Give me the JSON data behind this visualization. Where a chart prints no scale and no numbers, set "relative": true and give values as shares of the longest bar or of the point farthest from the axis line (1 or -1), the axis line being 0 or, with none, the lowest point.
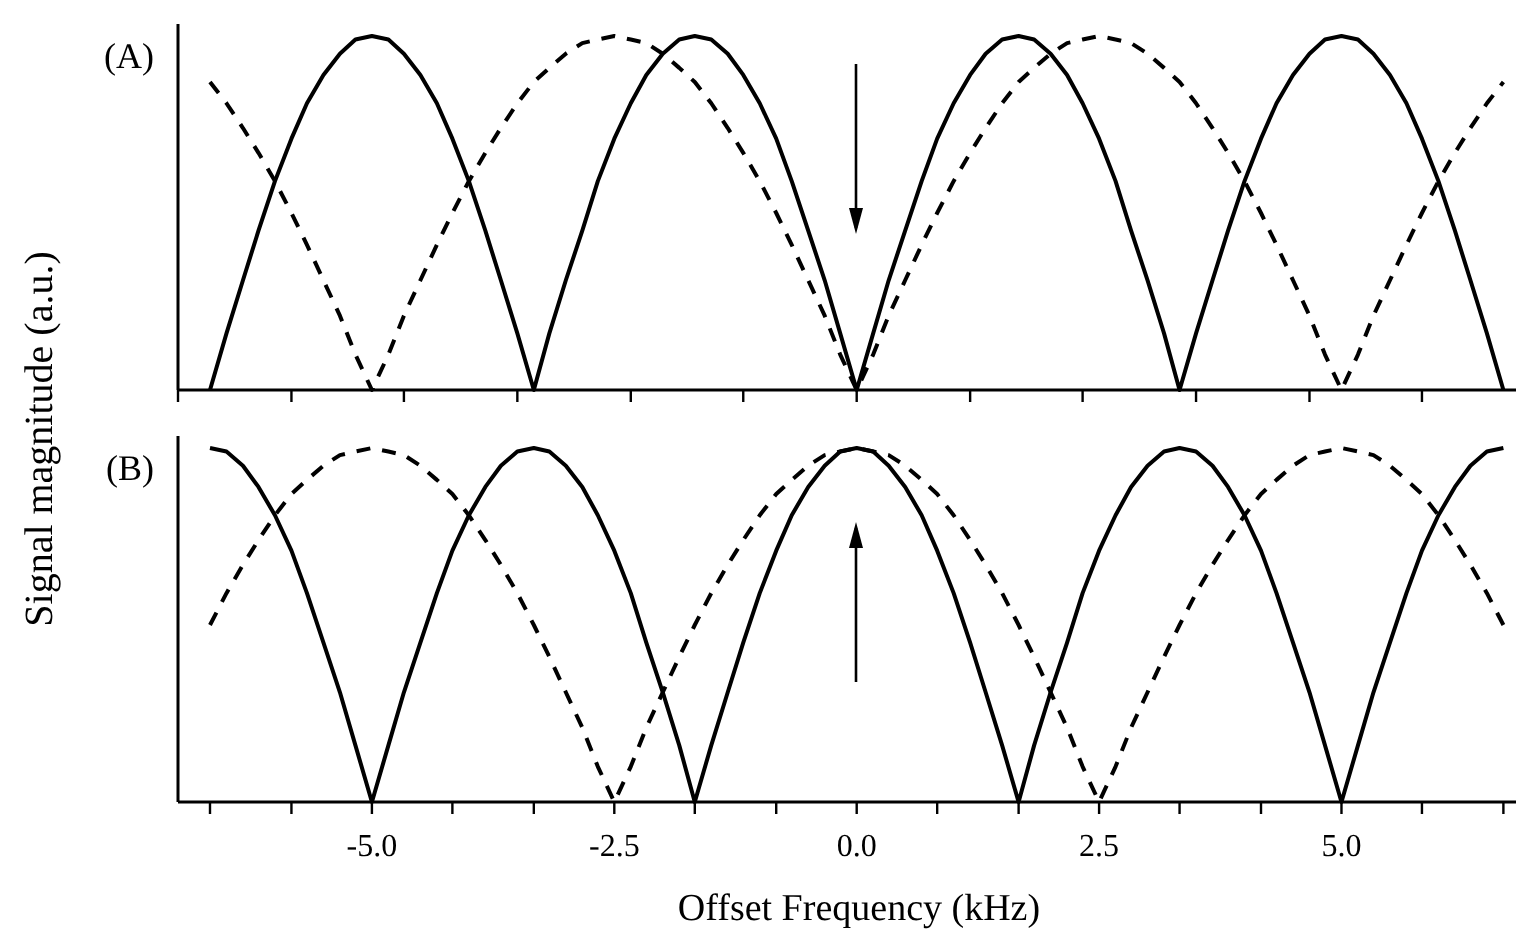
{
  "chart_data": [
    {
      "type": "line",
      "title": "(A)",
      "ylabel": "Signal magnitude (a.u.)",
      "relative": true,
      "tick_labels": false,
      "xlim": [
        -7,
        6.8
      ],
      "xticks": [
        -7,
        -5.83,
        -4.67,
        -3.5,
        -2.33,
        -1.17,
        0,
        1.17,
        2.33,
        3.5,
        4.67,
        5.83
      ],
      "x": [
        -6.67,
        -6.5,
        -6.33,
        -6.17,
        -6,
        -5.83,
        -5.67,
        -5.5,
        -5.33,
        -5.17,
        -5,
        -4.83,
        -4.67,
        -4.5,
        -4.33,
        -4.17,
        -4,
        -3.83,
        -3.67,
        -3.5,
        -3.33,
        -3.17,
        -3,
        -2.83,
        -2.67,
        -2.5,
        -2.33,
        -2.17,
        -2,
        -1.83,
        -1.67,
        -1.5,
        -1.33,
        -1.17,
        -1,
        -0.83,
        -0.67,
        -0.5,
        -0.33,
        -0.17,
        0,
        0.17,
        0.33,
        0.5,
        0.67,
        0.83,
        1,
        1.17,
        1.33,
        1.5,
        1.67,
        1.83,
        2,
        2.17,
        2.33,
        2.5,
        2.67,
        2.83,
        3,
        3.17,
        3.33,
        3.5,
        3.67,
        3.83,
        4,
        4.17,
        4.33,
        4.5,
        4.67,
        4.83,
        5,
        5.17,
        5.33,
        5.5,
        5.67,
        5.83,
        6,
        6.17,
        6.33,
        6.5,
        6.67
      ],
      "series": [
        {
          "color": "#000000",
          "line_style": "solid",
          "values": [
            0,
            0.16,
            0.31,
            0.45,
            0.59,
            0.71,
            0.81,
            0.89,
            0.95,
            0.99,
            1,
            0.99,
            0.95,
            0.89,
            0.81,
            0.71,
            0.59,
            0.45,
            0.31,
            0.16,
            0,
            0.16,
            0.31,
            0.45,
            0.59,
            0.71,
            0.81,
            0.89,
            0.95,
            0.99,
            1,
            0.99,
            0.95,
            0.89,
            0.81,
            0.71,
            0.59,
            0.45,
            0.31,
            0.16,
            0,
            0.16,
            0.31,
            0.45,
            0.59,
            0.71,
            0.81,
            0.89,
            0.95,
            0.99,
            1,
            0.99,
            0.95,
            0.89,
            0.81,
            0.71,
            0.59,
            0.45,
            0.31,
            0.16,
            0,
            0.16,
            0.31,
            0.45,
            0.59,
            0.71,
            0.81,
            0.89,
            0.95,
            0.99,
            1,
            0.99,
            0.95,
            0.89,
            0.81,
            0.71,
            0.59,
            0.45,
            0.31,
            0.16,
            0
          ]
        },
        {
          "color": "#000000",
          "line_style": "dashed",
          "values": [
            0.87,
            0.81,
            0.74,
            0.67,
            0.59,
            0.5,
            0.41,
            0.31,
            0.21,
            0.1,
            0,
            0.1,
            0.21,
            0.31,
            0.41,
            0.5,
            0.59,
            0.67,
            0.74,
            0.81,
            0.87,
            0.91,
            0.95,
            0.98,
            0.99,
            1,
            0.99,
            0.98,
            0.95,
            0.91,
            0.87,
            0.81,
            0.74,
            0.67,
            0.59,
            0.5,
            0.41,
            0.31,
            0.21,
            0.1,
            0,
            0.1,
            0.21,
            0.31,
            0.41,
            0.5,
            0.59,
            0.67,
            0.74,
            0.81,
            0.87,
            0.91,
            0.95,
            0.98,
            0.99,
            1,
            0.99,
            0.98,
            0.95,
            0.91,
            0.87,
            0.81,
            0.74,
            0.67,
            0.59,
            0.5,
            0.41,
            0.31,
            0.21,
            0.1,
            0,
            0.1,
            0.21,
            0.31,
            0.41,
            0.5,
            0.59,
            0.67,
            0.74,
            0.81,
            0.87
          ]
        }
      ]
    },
    {
      "type": "line",
      "title": "(B)",
      "xlabel": "Offset Frequency (kHz)",
      "relative": true,
      "tick_labels": "x",
      "xlim": [
        -7,
        6.8
      ],
      "xticks": [
        {
          "value": -6.67,
          "label": null
        },
        {
          "value": -5.83,
          "label": null
        },
        {
          "value": -5,
          "label": "-5.0"
        },
        {
          "value": -4.17,
          "label": null
        },
        {
          "value": -3.33,
          "label": null
        },
        {
          "value": -2.5,
          "label": "-2.5"
        },
        {
          "value": -1.67,
          "label": null
        },
        {
          "value": -0.83,
          "label": null
        },
        {
          "value": 0,
          "label": "0.0"
        },
        {
          "value": 0.83,
          "label": null
        },
        {
          "value": 1.67,
          "label": null
        },
        {
          "value": 2.5,
          "label": "2.5"
        },
        {
          "value": 3.33,
          "label": null
        },
        {
          "value": 4.17,
          "label": null
        },
        {
          "value": 5,
          "label": "5.0"
        },
        {
          "value": 5.83,
          "label": null
        },
        {
          "value": 6.67,
          "label": null
        }
      ],
      "x": [
        -6.67,
        -6.5,
        -6.33,
        -6.17,
        -6,
        -5.83,
        -5.67,
        -5.5,
        -5.33,
        -5.17,
        -5,
        -4.83,
        -4.67,
        -4.5,
        -4.33,
        -4.17,
        -4,
        -3.83,
        -3.67,
        -3.5,
        -3.33,
        -3.17,
        -3,
        -2.83,
        -2.67,
        -2.5,
        -2.33,
        -2.17,
        -2,
        -1.83,
        -1.67,
        -1.5,
        -1.33,
        -1.17,
        -1,
        -0.83,
        -0.67,
        -0.5,
        -0.33,
        -0.17,
        0,
        0.17,
        0.33,
        0.5,
        0.67,
        0.83,
        1,
        1.17,
        1.33,
        1.5,
        1.67,
        1.83,
        2,
        2.17,
        2.33,
        2.5,
        2.67,
        2.83,
        3,
        3.17,
        3.33,
        3.5,
        3.67,
        3.83,
        4,
        4.17,
        4.33,
        4.5,
        4.67,
        4.83,
        5,
        5.17,
        5.33,
        5.5,
        5.67,
        5.83,
        6,
        6.17,
        6.33,
        6.5,
        6.67
      ],
      "series": [
        {
          "color": "#000000",
          "line_style": "solid",
          "values": [
            1,
            0.99,
            0.95,
            0.89,
            0.81,
            0.71,
            0.59,
            0.45,
            0.31,
            0.16,
            0,
            0.16,
            0.31,
            0.45,
            0.59,
            0.71,
            0.81,
            0.89,
            0.95,
            0.99,
            1,
            0.99,
            0.95,
            0.89,
            0.81,
            0.71,
            0.59,
            0.45,
            0.31,
            0.16,
            0,
            0.16,
            0.31,
            0.45,
            0.59,
            0.71,
            0.81,
            0.89,
            0.95,
            0.99,
            1,
            0.99,
            0.95,
            0.89,
            0.81,
            0.71,
            0.59,
            0.45,
            0.31,
            0.16,
            0,
            0.16,
            0.31,
            0.45,
            0.59,
            0.71,
            0.81,
            0.89,
            0.95,
            0.99,
            1,
            0.99,
            0.95,
            0.89,
            0.81,
            0.71,
            0.59,
            0.45,
            0.31,
            0.16,
            0,
            0.16,
            0.31,
            0.45,
            0.59,
            0.71,
            0.81,
            0.89,
            0.95,
            0.99,
            1
          ]
        },
        {
          "color": "#000000",
          "line_style": "dashed",
          "values": [
            0.5,
            0.59,
            0.67,
            0.74,
            0.81,
            0.87,
            0.91,
            0.95,
            0.98,
            0.99,
            1,
            0.99,
            0.98,
            0.95,
            0.91,
            0.87,
            0.81,
            0.74,
            0.67,
            0.59,
            0.5,
            0.41,
            0.31,
            0.21,
            0.1,
            0,
            0.1,
            0.21,
            0.31,
            0.41,
            0.5,
            0.59,
            0.67,
            0.74,
            0.81,
            0.87,
            0.91,
            0.95,
            0.98,
            0.99,
            1,
            0.99,
            0.98,
            0.95,
            0.91,
            0.87,
            0.81,
            0.74,
            0.67,
            0.59,
            0.5,
            0.41,
            0.31,
            0.21,
            0.1,
            0,
            0.1,
            0.21,
            0.31,
            0.41,
            0.5,
            0.59,
            0.67,
            0.74,
            0.81,
            0.87,
            0.91,
            0.95,
            0.98,
            0.99,
            1,
            0.99,
            0.98,
            0.95,
            0.91,
            0.87,
            0.81,
            0.74,
            0.67,
            0.59,
            0.5
          ]
        }
      ]
    }
  ]
}
